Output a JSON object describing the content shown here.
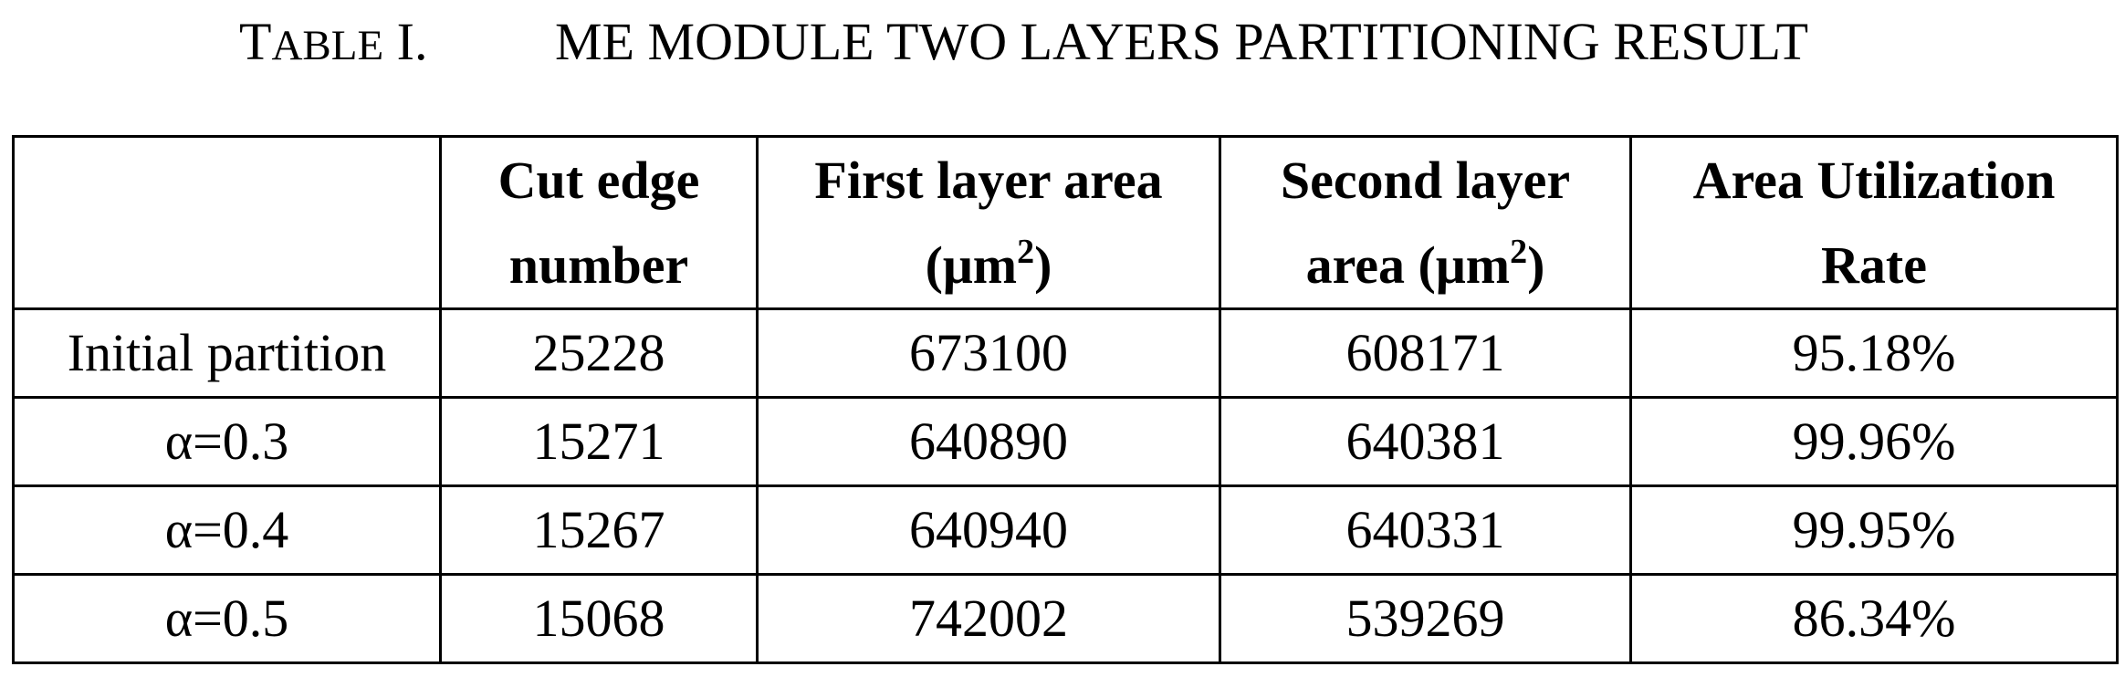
{
  "caption": {
    "label_first_letter": "T",
    "label_rest": "ABLE",
    "label_number": " I.",
    "title": "ME MODULE TWO LAYERS PARTITIONING RESULT"
  },
  "table": {
    "headers": [
      {
        "line1": "",
        "line2": ""
      },
      {
        "line1": "Cut edge",
        "line2": "number"
      },
      {
        "line1": "First layer area",
        "line2": "(μm",
        "sup": "2",
        "after": ")"
      },
      {
        "line1": "Second layer",
        "line2": "area (μm",
        "sup": "2",
        "after": ")"
      },
      {
        "line1": "Area Utilization",
        "line2": "Rate"
      }
    ],
    "rows": [
      [
        "Initial partition",
        "25228",
        "673100",
        "608171",
        "95.18%"
      ],
      [
        "α=0.3",
        "15271",
        "640890",
        "640381",
        "99.96%"
      ],
      [
        "α=0.4",
        "15267",
        "640940",
        "640331",
        "99.95%"
      ],
      [
        "α=0.5",
        "15068",
        "742002",
        "539269",
        "86.34%"
      ]
    ]
  }
}
